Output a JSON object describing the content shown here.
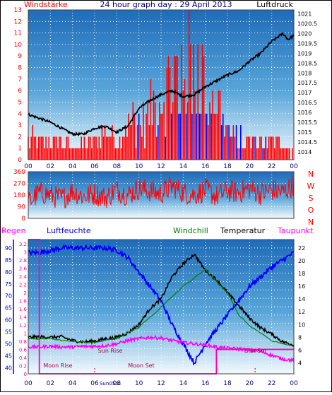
{
  "colors": {
    "wind_speed": "#ff0000",
    "wind_dir": "#ff0000",
    "calm_bars": "#0000ff",
    "pressure": "#000000",
    "humidity": "#0000ff",
    "temperature": "#000000",
    "windchill": "#008000",
    "dewpoint": "#ff00ff",
    "rain": "#ff00aa",
    "title": "#000080",
    "grid": "#ffffff"
  },
  "chart_data": [
    {
      "type": "bar+line",
      "title": "24 hour graph day : 29 April 2013",
      "left_axis_label": "Windstärke",
      "right_axis_label": "Luftdruck",
      "x_ticks": [
        "00",
        "02",
        "04",
        "06",
        "08",
        "10",
        "12",
        "14",
        "16",
        "18",
        "20",
        "22",
        "00"
      ],
      "left_ticks": [
        "0",
        "1",
        "2",
        "3",
        "4",
        "5",
        "6",
        "7",
        "8",
        "9",
        "10",
        "11",
        "12",
        "13"
      ],
      "left_ylim": [
        0,
        13
      ],
      "right_ticks": [
        "1014",
        "1014.5",
        "1015",
        "1015.5",
        "1016",
        "1016.5",
        "1017",
        "1017.5",
        "1018",
        "1018.5",
        "1019",
        "1019.5",
        "1020",
        "1020.5",
        "1021"
      ],
      "right_ylim": [
        1013.6,
        1021.2
      ],
      "series": [
        {
          "name": "Luftdruck",
          "x_hours": [
            0,
            1,
            2,
            3,
            4,
            5,
            6,
            7,
            8,
            9,
            10,
            11,
            12,
            13,
            14,
            15,
            16,
            17,
            18,
            19,
            20,
            21,
            22,
            23,
            23.5,
            24
          ],
          "values": [
            1015.9,
            1015.7,
            1015.5,
            1015.2,
            1014.9,
            1014.9,
            1015.2,
            1015.3,
            1015.0,
            1015.3,
            1016.2,
            1016.6,
            1016.9,
            1017.1,
            1016.8,
            1016.9,
            1017.3,
            1017.6,
            1017.9,
            1018.1,
            1018.6,
            1019.0,
            1019.6,
            1020.0,
            1019.7,
            1019.9
          ]
        },
        {
          "name": "Windstärke",
          "x_hours": [
            0,
            1,
            2,
            3,
            4,
            5,
            6,
            7,
            8,
            9,
            10,
            11,
            12,
            13,
            14,
            15,
            16,
            17,
            18,
            19,
            20,
            21,
            22,
            23,
            24
          ],
          "values": [
            2,
            2,
            2,
            2,
            1,
            2,
            2,
            3,
            2,
            4,
            4,
            5,
            7,
            9,
            10,
            13,
            8,
            7,
            3,
            2,
            2,
            2,
            2,
            2,
            1
          ]
        }
      ]
    },
    {
      "type": "line",
      "right_labels": [
        "N",
        "W",
        "S",
        "O",
        "N"
      ],
      "left_ticks": [
        "0",
        "90",
        "180",
        "270",
        "360"
      ],
      "ylim": [
        0,
        360
      ],
      "series": [
        {
          "name": "Windrichtung",
          "x_hours": [
            0,
            1,
            2,
            3,
            4,
            5,
            6,
            7,
            8,
            9,
            10,
            11,
            12,
            13,
            14,
            15,
            16,
            17,
            18,
            19,
            20,
            21,
            22,
            23,
            24
          ],
          "values": [
            120,
            200,
            180,
            150,
            210,
            170,
            190,
            160,
            220,
            180,
            230,
            210,
            190,
            250,
            200,
            180,
            220,
            170,
            210,
            200,
            230,
            190,
            220,
            200,
            260
          ]
        }
      ]
    },
    {
      "type": "line",
      "legend": [
        "Regen",
        "Luftfeuchte",
        "Windchill",
        "Temperatur",
        "Taupunkt"
      ],
      "humidity_ticks": [
        "40",
        "45",
        "50",
        "55",
        "60",
        "65",
        "70",
        "75",
        "80",
        "85",
        "90"
      ],
      "humidity_ylim": [
        37.5,
        93.5
      ],
      "rain_ticks": [
        "0",
        "0.2",
        "0.4",
        "0.6",
        "0.8",
        "1",
        "1.2",
        "1.4",
        "1.6",
        "1.8",
        "2",
        "2.2",
        "2.4",
        "2.6",
        "2.8",
        "3",
        "3.2"
      ],
      "rain_ylim": [
        0,
        3.3
      ],
      "temp_ticks": [
        "4",
        "6",
        "8",
        "10",
        "12",
        "14",
        "16",
        "18",
        "20",
        "22"
      ],
      "temp_ylim": [
        2.3,
        23.3
      ],
      "x_ticks": [
        "00",
        "02",
        "04",
        "06",
        "08",
        "10",
        "12",
        "14",
        "16",
        "18",
        "20",
        "22",
        "00"
      ],
      "annotations": {
        "moon_rise": "Moon Rise",
        "sun_rise": "Sun Rise",
        "moon_set": "Moon Set",
        "sun_set": "Sun Set",
        "sunrise_axis": "Sun05cc"
      },
      "series": [
        {
          "name": "Luftfeuchte",
          "x_hours": [
            0,
            1,
            2,
            3,
            4,
            5,
            6,
            7,
            8,
            9,
            10,
            11,
            12,
            13,
            14,
            15,
            16,
            17,
            18,
            19,
            20,
            21,
            22,
            23,
            24
          ],
          "values": [
            88,
            88,
            89,
            90,
            90,
            90,
            90,
            90,
            89,
            86,
            80,
            74,
            68,
            58,
            50,
            42,
            50,
            56,
            62,
            68,
            74,
            78,
            82,
            85,
            88
          ]
        },
        {
          "name": "Temperatur",
          "x_hours": [
            0,
            1,
            2,
            3,
            4,
            5,
            6,
            7,
            8,
            9,
            10,
            11,
            12,
            13,
            14,
            15,
            16,
            17,
            18,
            19,
            20,
            21,
            22,
            23,
            24
          ],
          "values": [
            8.0,
            8.1,
            8.0,
            8.1,
            7.5,
            7.3,
            7.4,
            7.8,
            8.0,
            8.7,
            10.0,
            12.5,
            14.0,
            17.5,
            19.5,
            21.0,
            18.5,
            17.0,
            15.0,
            13.0,
            11.0,
            9.5,
            8.5,
            7.3,
            6.8
          ]
        },
        {
          "name": "Taupunkt",
          "x_hours": [
            0,
            1,
            2,
            3,
            4,
            5,
            6,
            7,
            8,
            9,
            10,
            11,
            12,
            13,
            14,
            15,
            16,
            17,
            18,
            19,
            20,
            21,
            22,
            23,
            24
          ],
          "values": [
            6.5,
            6.5,
            6.6,
            6.5,
            6.5,
            6.6,
            6.6,
            6.7,
            7.0,
            7.5,
            7.8,
            8.0,
            7.9,
            7.5,
            7.2,
            7.0,
            6.8,
            6.5,
            6.3,
            6.2,
            6.0,
            5.8,
            5.2,
            4.6,
            4.4
          ]
        },
        {
          "name": "Windchill",
          "x_hours": [
            0,
            2,
            4,
            6,
            8,
            10,
            12,
            14,
            16,
            18,
            19,
            20,
            21,
            22,
            23,
            24
          ],
          "values": [
            7.8,
            7.8,
            7.3,
            7.2,
            7.8,
            9.6,
            12.7,
            16.0,
            18.6,
            14.9,
            11.6,
            9.8,
            8.7,
            7.5,
            7.0,
            6.6
          ]
        },
        {
          "name": "Regen",
          "x_hours": [
            0,
            1,
            2,
            3,
            4,
            5,
            6,
            7,
            8,
            9,
            10,
            11,
            12,
            13,
            14,
            15,
            16,
            17,
            18,
            19,
            20,
            21,
            22,
            23,
            24
          ],
          "values": [
            3.3,
            0,
            0,
            0,
            0,
            0,
            0,
            0,
            0,
            0,
            0,
            0,
            0,
            0,
            0,
            0,
            0,
            0.6,
            0.6,
            0.6,
            0.6,
            0.6,
            0.6,
            0.6,
            0.6
          ]
        }
      ]
    }
  ]
}
